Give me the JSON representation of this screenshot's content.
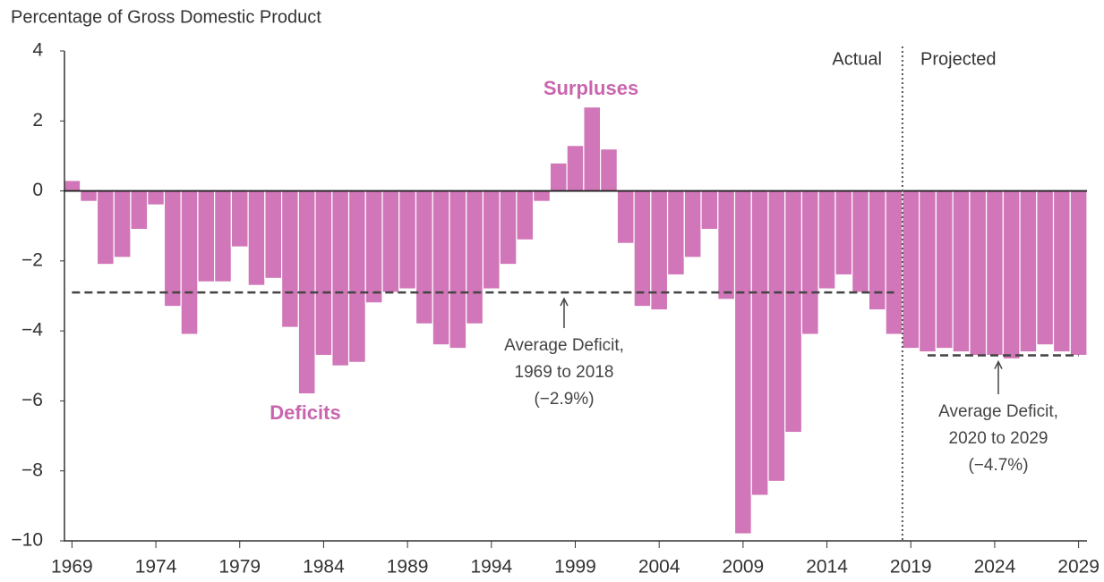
{
  "chart_data": {
    "type": "bar",
    "ylabel": "Percentage of Gross Domestic Product",
    "x": [
      1969,
      1970,
      1971,
      1972,
      1973,
      1974,
      1975,
      1976,
      1977,
      1978,
      1979,
      1980,
      1981,
      1982,
      1983,
      1984,
      1985,
      1986,
      1987,
      1988,
      1989,
      1990,
      1991,
      1992,
      1993,
      1994,
      1995,
      1996,
      1997,
      1998,
      1999,
      2000,
      2001,
      2002,
      2003,
      2004,
      2005,
      2006,
      2007,
      2008,
      2009,
      2010,
      2011,
      2012,
      2013,
      2014,
      2015,
      2016,
      2017,
      2018,
      2019,
      2020,
      2021,
      2022,
      2023,
      2024,
      2025,
      2026,
      2027,
      2028,
      2029
    ],
    "values": [
      0.3,
      -0.3,
      -2.1,
      -1.9,
      -1.1,
      -0.4,
      -3.3,
      -4.1,
      -2.6,
      -2.6,
      -1.6,
      -2.7,
      -2.5,
      -3.9,
      -5.8,
      -4.7,
      -5.0,
      -4.9,
      -3.2,
      -2.9,
      -2.8,
      -3.8,
      -4.4,
      -4.5,
      -3.8,
      -2.8,
      -2.1,
      -1.4,
      -0.3,
      0.8,
      1.3,
      2.4,
      1.2,
      -1.5,
      -3.3,
      -3.4,
      -2.4,
      -1.9,
      -1.1,
      -3.1,
      -9.8,
      -8.7,
      -8.3,
      -6.9,
      -4.1,
      -2.8,
      -2.4,
      -2.9,
      -3.4,
      -4.1,
      -4.5,
      -4.6,
      -4.5,
      -4.6,
      -4.7,
      -4.7,
      -4.8,
      -4.6,
      -4.4,
      -4.6,
      -4.7
    ],
    "color": "#d176b8",
    "xlim": [
      1968.5,
      2029.5
    ],
    "xticks": [
      1969,
      1974,
      1979,
      1984,
      1989,
      1994,
      1999,
      2004,
      2009,
      2014,
      2019,
      2024,
      2029
    ],
    "ylim": [
      -10,
      4
    ],
    "yticks": [
      {
        "value": -10,
        "label": "−10"
      },
      {
        "value": -8,
        "label": "−8"
      },
      {
        "value": -6,
        "label": "−6"
      },
      {
        "value": -4,
        "label": "−4"
      },
      {
        "value": -2,
        "label": "−2"
      },
      0,
      2,
      4
    ],
    "projection_start": 2019,
    "annotations": {
      "surpluses": "Surpluses",
      "deficits": "Deficits",
      "actual": "Actual",
      "projected": "Projected"
    },
    "averages": [
      {
        "value": -2.9,
        "from": 1969,
        "to": 2018,
        "label": [
          "Average Deficit,",
          "1969 to 2018",
          "(−2.9%)"
        ]
      },
      {
        "value": -4.7,
        "from": 2020,
        "to": 2029,
        "label": [
          "Average Deficit,",
          "2020 to 2029",
          "(−4.7%)"
        ]
      }
    ]
  }
}
